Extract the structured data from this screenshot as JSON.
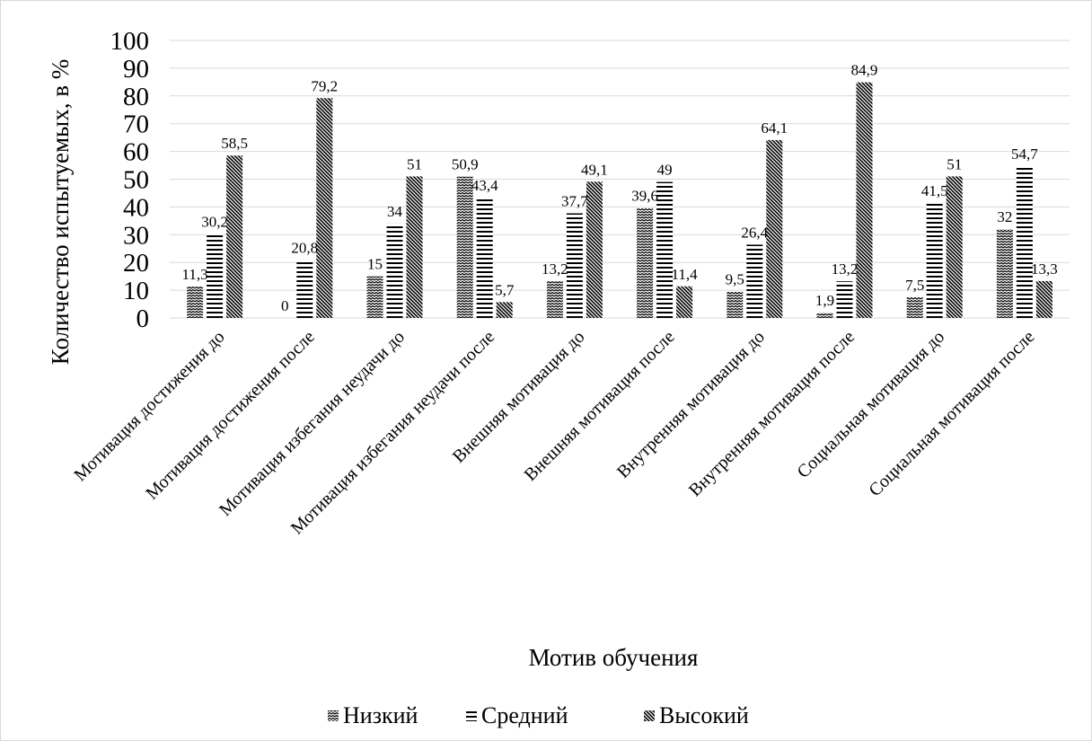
{
  "chart_data": {
    "type": "bar",
    "title": "",
    "xlabel": "Мотив обучения",
    "ylabel": "Количество испытуемых, в %",
    "ylim": [
      0,
      100
    ],
    "yticks": [
      "0",
      "10",
      "20",
      "30",
      "40",
      "50",
      "60",
      "70",
      "80",
      "90",
      "100"
    ],
    "grid": true,
    "legend_position": "bottom",
    "categories": [
      "Мотивация достижения до",
      "Мотивация достижения после",
      "Мотивация избегания неудачи до",
      "Мотивация избегания неудачи после",
      "Внешняя мотивация до",
      "Внешняя мотивация после",
      "Внутренняя мотивация до",
      "Внутренняя мотивация после",
      "Социальная мотивация до",
      "Социальная мотивация после"
    ],
    "series": [
      {
        "name": "Низкий",
        "pattern": "waves",
        "values": [
          11.3,
          0,
          15,
          50.9,
          13.2,
          39.6,
          9.5,
          1.9,
          7.5,
          32
        ],
        "labels": [
          "11,3",
          "0",
          "15",
          "50,9",
          "13,2",
          "39,6",
          "9,5",
          "1,9",
          "7,5",
          "32"
        ]
      },
      {
        "name": "Средний",
        "pattern": "horizontal-lines",
        "values": [
          30.2,
          20.8,
          34,
          43.4,
          37.7,
          49,
          26.4,
          13.2,
          41.5,
          54.7
        ],
        "labels": [
          "30,2",
          "20,8",
          "34",
          "43,4",
          "37,7",
          "49",
          "26,4",
          "13,2",
          "41,5",
          "54,7"
        ]
      },
      {
        "name": "Высокий",
        "pattern": "dense-diagonal",
        "values": [
          58.5,
          79.2,
          51,
          5.7,
          49.1,
          11.4,
          64.1,
          84.9,
          51,
          13.3
        ],
        "labels": [
          "58,5",
          "79,2",
          "51",
          "5,7",
          "49,1",
          "11,4",
          "64,1",
          "84,9",
          "51",
          "13,3"
        ]
      }
    ],
    "colors": {
      "ink": "#000000",
      "grid": "#d9d9d9",
      "background": "#ffffff",
      "border": "#d9d9d9"
    }
  }
}
